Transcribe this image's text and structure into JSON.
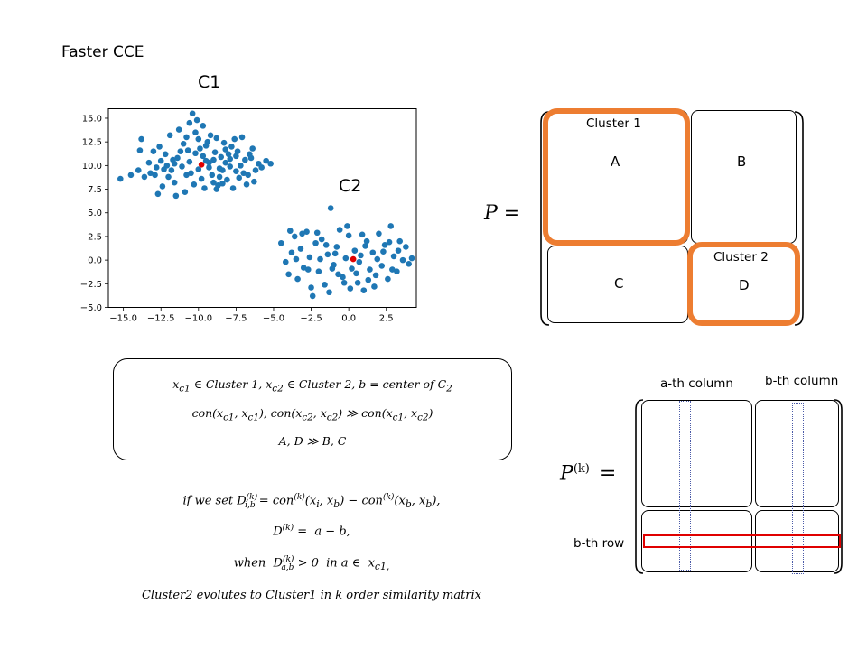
{
  "title": "Faster CCE",
  "labels": {
    "c1": "C1",
    "c2": "C2"
  },
  "matrix_p": {
    "lhs": "P =",
    "blocks": {
      "a": "A",
      "b": "B",
      "c": "C",
      "d": "D"
    },
    "cluster1": "Cluster 1",
    "cluster2": "Cluster 2",
    "highlight_color": "#ed7d31"
  },
  "matrix_pk": {
    "lhs_base": "P",
    "lhs_sup": "(k)",
    "lhs_eq": "=",
    "a_col": "a-th column",
    "b_col": "b-th column",
    "b_row": "b-th row",
    "row_color": "#e00000",
    "col_color": "#4a5aa8"
  },
  "note_lines": [
    "x_c1 ∈ Cluster 1, x_c2 ∈ Cluster 2, b = center of C2",
    "con(x_c1, x_c1), con(x_c2, x_c2) ≫ con(x_c1, x_c2)",
    "A, D ≫ B, C"
  ],
  "equations": [
    "if we set D_{i,b}^{(k)} = con^{(k)}(x_i, x_b) − con^{(k)}(x_b, x_b),",
    "D^{(k)} = a − b,",
    "when D_{a,b}^{(k)} > 0 in a ∈ x_c1,",
    "Cluster2 evolutes to Cluster1 in k order similarity matrix"
  ],
  "chart_data": {
    "type": "scatter",
    "title": "",
    "xlabel": "",
    "ylabel": "",
    "xlim": [
      -16.0,
      4.5
    ],
    "ylim": [
      -5.0,
      16.0
    ],
    "xticks": [
      "-15.0",
      "-12.5",
      "-10.0",
      "-7.5",
      "-5.0",
      "-2.5",
      "0.0",
      "2.5"
    ],
    "yticks": [
      "-5.0",
      "-2.5",
      "0.0",
      "2.5",
      "5.0",
      "7.5",
      "10.0",
      "12.5",
      "15.0"
    ],
    "grid": false,
    "point_color": "#1f77b4",
    "center_color": "#e00000",
    "centers": [
      {
        "x": -9.8,
        "y": 10.1
      },
      {
        "x": 0.3,
        "y": 0.1
      }
    ],
    "series": [
      {
        "points": [
          [
            -15.2,
            8.6
          ],
          [
            -14.5,
            9.0
          ],
          [
            -14.0,
            9.5
          ],
          [
            -13.6,
            8.8
          ],
          [
            -13.2,
            9.2
          ],
          [
            -12.8,
            9.8
          ],
          [
            -12.5,
            10.5
          ],
          [
            -12.2,
            11.2
          ],
          [
            -12.0,
            8.8
          ],
          [
            -11.8,
            9.5
          ],
          [
            -11.6,
            10.2
          ],
          [
            -11.4,
            10.8
          ],
          [
            -11.2,
            11.5
          ],
          [
            -11.0,
            12.3
          ],
          [
            -10.8,
            13.0
          ],
          [
            -10.6,
            14.5
          ],
          [
            -10.4,
            15.5
          ],
          [
            -10.2,
            13.5
          ],
          [
            -10.0,
            12.8
          ],
          [
            -9.9,
            11.8
          ],
          [
            -9.7,
            11.0
          ],
          [
            -9.5,
            10.5
          ],
          [
            -9.3,
            9.8
          ],
          [
            -9.1,
            9.0
          ],
          [
            -9.0,
            8.2
          ],
          [
            -8.8,
            7.5
          ],
          [
            -8.6,
            8.8
          ],
          [
            -8.4,
            9.5
          ],
          [
            -8.2,
            10.3
          ],
          [
            -8.0,
            11.2
          ],
          [
            -7.8,
            12.0
          ],
          [
            -7.6,
            12.8
          ],
          [
            -7.4,
            11.5
          ],
          [
            -7.2,
            10.0
          ],
          [
            -7.0,
            9.2
          ],
          [
            -6.8,
            8.0
          ],
          [
            -6.5,
            10.8
          ],
          [
            -6.2,
            9.5
          ],
          [
            -6.0,
            10.2
          ],
          [
            -5.8,
            9.8
          ],
          [
            -5.5,
            10.5
          ],
          [
            -5.2,
            10.2
          ],
          [
            -13.8,
            12.8
          ],
          [
            -13.0,
            11.5
          ],
          [
            -12.7,
            7.0
          ],
          [
            -12.4,
            7.8
          ],
          [
            -11.9,
            13.2
          ],
          [
            -11.5,
            6.8
          ],
          [
            -11.3,
            13.8
          ],
          [
            -10.9,
            7.2
          ],
          [
            -10.7,
            11.6
          ],
          [
            -10.5,
            9.2
          ],
          [
            -10.3,
            8.0
          ],
          [
            -10.1,
            14.8
          ],
          [
            -9.6,
            7.6
          ],
          [
            -9.4,
            12.5
          ],
          [
            -9.2,
            13.2
          ],
          [
            -8.9,
            11.4
          ],
          [
            -8.7,
            7.9
          ],
          [
            -8.5,
            10.9
          ],
          [
            -8.3,
            12.4
          ],
          [
            -8.1,
            8.5
          ],
          [
            -7.9,
            9.9
          ],
          [
            -7.7,
            7.6
          ],
          [
            -7.5,
            11.0
          ],
          [
            -7.3,
            8.7
          ],
          [
            -7.1,
            13.0
          ],
          [
            -6.9,
            10.6
          ],
          [
            -6.7,
            9.0
          ],
          [
            -6.4,
            11.8
          ],
          [
            -12.9,
            9.0
          ],
          [
            -12.6,
            12.0
          ],
          [
            -12.3,
            9.6
          ],
          [
            -11.7,
            10.6
          ],
          [
            -11.1,
            9.9
          ],
          [
            -10.6,
            10.4
          ],
          [
            -10.2,
            11.3
          ],
          [
            -9.8,
            8.6
          ],
          [
            -9.5,
            12.1
          ],
          [
            -9.0,
            10.6
          ],
          [
            -8.6,
            9.7
          ],
          [
            -8.2,
            11.7
          ],
          [
            -7.9,
            10.7
          ],
          [
            -7.5,
            9.4
          ],
          [
            -6.6,
            11.2
          ],
          [
            -6.3,
            8.3
          ],
          [
            -13.3,
            10.3
          ],
          [
            -13.9,
            11.6
          ],
          [
            -10.8,
            9.0
          ],
          [
            -10.0,
            9.6
          ],
          [
            -9.3,
            10.3
          ],
          [
            -8.8,
            12.9
          ],
          [
            -8.4,
            8.1
          ],
          [
            -11.6,
            8.2
          ],
          [
            -12.1,
            10.0
          ],
          [
            -9.7,
            14.2
          ]
        ]
      },
      {
        "points": [
          [
            -4.5,
            1.8
          ],
          [
            -4.2,
            -0.2
          ],
          [
            -4.0,
            -1.5
          ],
          [
            -3.8,
            0.8
          ],
          [
            -3.6,
            2.5
          ],
          [
            -3.4,
            -2.0
          ],
          [
            -3.2,
            1.2
          ],
          [
            -3.0,
            -0.8
          ],
          [
            -2.8,
            3.0
          ],
          [
            -2.6,
            0.3
          ],
          [
            -2.4,
            -3.8
          ],
          [
            -2.2,
            1.8
          ],
          [
            -2.0,
            -1.2
          ],
          [
            -1.8,
            2.2
          ],
          [
            -1.6,
            -2.6
          ],
          [
            -1.4,
            0.6
          ],
          [
            -1.2,
            5.5
          ],
          [
            -1.0,
            -0.5
          ],
          [
            -0.8,
            1.4
          ],
          [
            -0.6,
            3.2
          ],
          [
            -0.4,
            -1.8
          ],
          [
            -0.2,
            0.2
          ],
          [
            0.0,
            2.6
          ],
          [
            0.2,
            -0.9
          ],
          [
            0.4,
            1.0
          ],
          [
            0.6,
            -2.4
          ],
          [
            0.8,
            0.5
          ],
          [
            1.0,
            -3.2
          ],
          [
            1.2,
            2.0
          ],
          [
            1.4,
            -1.0
          ],
          [
            1.6,
            0.8
          ],
          [
            1.8,
            -1.6
          ],
          [
            2.0,
            2.8
          ],
          [
            2.2,
            -0.6
          ],
          [
            2.4,
            1.6
          ],
          [
            2.6,
            -2.0
          ],
          [
            2.8,
            3.6
          ],
          [
            3.0,
            0.4
          ],
          [
            3.2,
            -1.2
          ],
          [
            3.4,
            2.0
          ],
          [
            3.6,
            0.0
          ],
          [
            3.8,
            1.4
          ],
          [
            4.0,
            -0.4
          ],
          [
            4.2,
            0.2
          ],
          [
            -3.9,
            3.1
          ],
          [
            -3.1,
            2.8
          ],
          [
            -2.5,
            -2.9
          ],
          [
            -1.9,
            0.1
          ],
          [
            -1.3,
            -3.4
          ],
          [
            -0.7,
            -1.5
          ],
          [
            -0.1,
            3.6
          ],
          [
            0.5,
            -1.4
          ],
          [
            1.1,
            1.5
          ],
          [
            1.7,
            -2.8
          ],
          [
            2.3,
            0.9
          ],
          [
            2.9,
            -1.0
          ],
          [
            3.3,
            1.0
          ],
          [
            -2.7,
            -1.0
          ],
          [
            -1.5,
            1.6
          ],
          [
            -0.3,
            -2.4
          ],
          [
            0.9,
            2.7
          ],
          [
            1.9,
            0.1
          ],
          [
            -0.9,
            0.7
          ],
          [
            0.7,
            -0.2
          ],
          [
            -1.1,
            -0.9
          ],
          [
            1.3,
            -2.1
          ],
          [
            2.7,
            1.9
          ],
          [
            -3.5,
            0.1
          ],
          [
            -2.1,
            2.9
          ],
          [
            0.1,
            -3.0
          ]
        ]
      }
    ]
  }
}
